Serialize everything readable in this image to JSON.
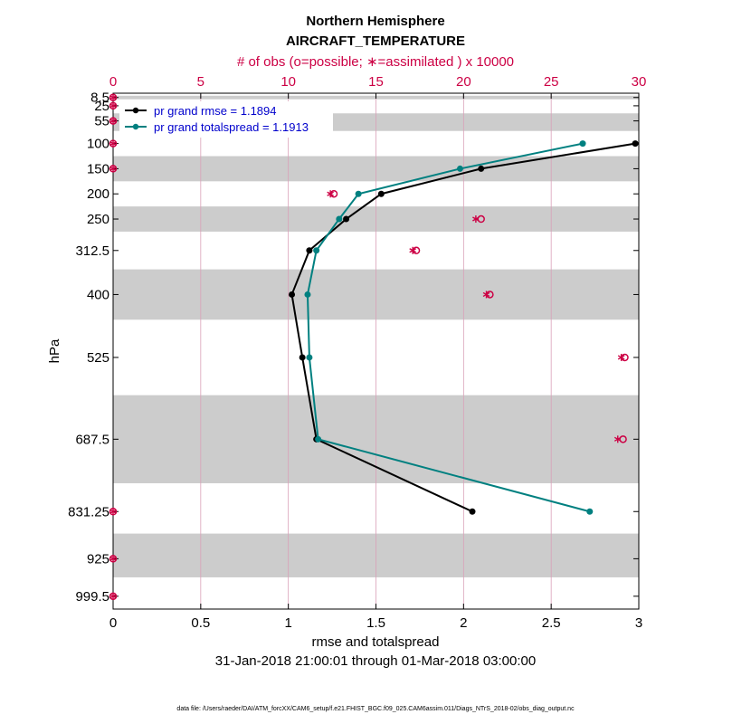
{
  "chart_data": {
    "type": "line",
    "title": "Northern Hemisphere",
    "subtitle": "AIRCRAFT_TEMPERATURE",
    "top_axis_label": "# of obs (o=possible; ∗=assimilated ) x 10000",
    "xlabel": "rmse and totalspread",
    "ylabel": "hPa",
    "date_range": "31-Jan-2018 21:00:01 through 01-Mar-2018 03:00:00",
    "footer": "data file: /Users/raeder/DAI/ATM_forcXX/CAM6_setup/f.e21.FHIST_BGC.f09_025.CAM6assim.011/Diags_NTrS_2018-02/obs_diag_output.nc",
    "xlim": [
      0,
      3
    ],
    "xticks": [
      "0",
      "0.5",
      "1",
      "1.5",
      "2",
      "2.5",
      "3"
    ],
    "xtick_values": [
      0,
      0.5,
      1,
      1.5,
      2,
      2.5,
      3
    ],
    "top_xlim": [
      0,
      30
    ],
    "top_xticks": [
      "0",
      "5",
      "10",
      "15",
      "20",
      "25",
      "30"
    ],
    "top_xtick_values": [
      0,
      5,
      10,
      15,
      20,
      25,
      30
    ],
    "ylim": [
      1025,
      0
    ],
    "levels": [
      8.5,
      25,
      55,
      100,
      150,
      200,
      250,
      312.5,
      400,
      525,
      687.5,
      831.25,
      925,
      999.5
    ],
    "level_labels": [
      "8.5",
      "25",
      "55",
      "100",
      "150",
      "200",
      "250",
      "312.5",
      "400",
      "525",
      "687.5",
      "831.25",
      "925",
      "999.5"
    ],
    "shaded_bands": [
      [
        5,
        12
      ],
      [
        40,
        75
      ],
      [
        125,
        175
      ],
      [
        225,
        275
      ],
      [
        350,
        450
      ],
      [
        600,
        775
      ],
      [
        875,
        962
      ]
    ],
    "legend_position": "top-left",
    "series": [
      {
        "name": "pr grand rmse = 1.1894",
        "color": "#000000",
        "x": [
          2.98,
          2.1,
          1.53,
          1.33,
          1.12,
          1.02,
          1.08,
          1.16,
          2.05
        ],
        "y": [
          100,
          150,
          200,
          250,
          312.5,
          400,
          525,
          687.5,
          831.25
        ]
      },
      {
        "name": "pr grand totalspread = 1.1913",
        "color": "#008080",
        "x": [
          2.68,
          1.98,
          1.4,
          1.29,
          1.16,
          1.11,
          1.12,
          1.17,
          2.72
        ],
        "y": [
          100,
          150,
          200,
          250,
          312.5,
          400,
          525,
          687.5,
          831.25
        ]
      }
    ],
    "obs": {
      "color": "#cc0044",
      "levels": [
        8.5,
        25,
        55,
        100,
        150,
        200,
        250,
        312.5,
        400,
        525,
        687.5,
        831.25,
        925,
        999.5
      ],
      "possible": [
        0,
        0,
        0,
        0,
        0,
        12.6,
        21,
        17.3,
        21.5,
        29.2,
        29.1,
        0,
        0,
        0
      ],
      "assimilated": [
        0,
        0,
        0,
        0,
        0,
        12.4,
        20.7,
        17.1,
        21.3,
        29.0,
        28.8,
        0,
        0,
        0
      ]
    }
  }
}
